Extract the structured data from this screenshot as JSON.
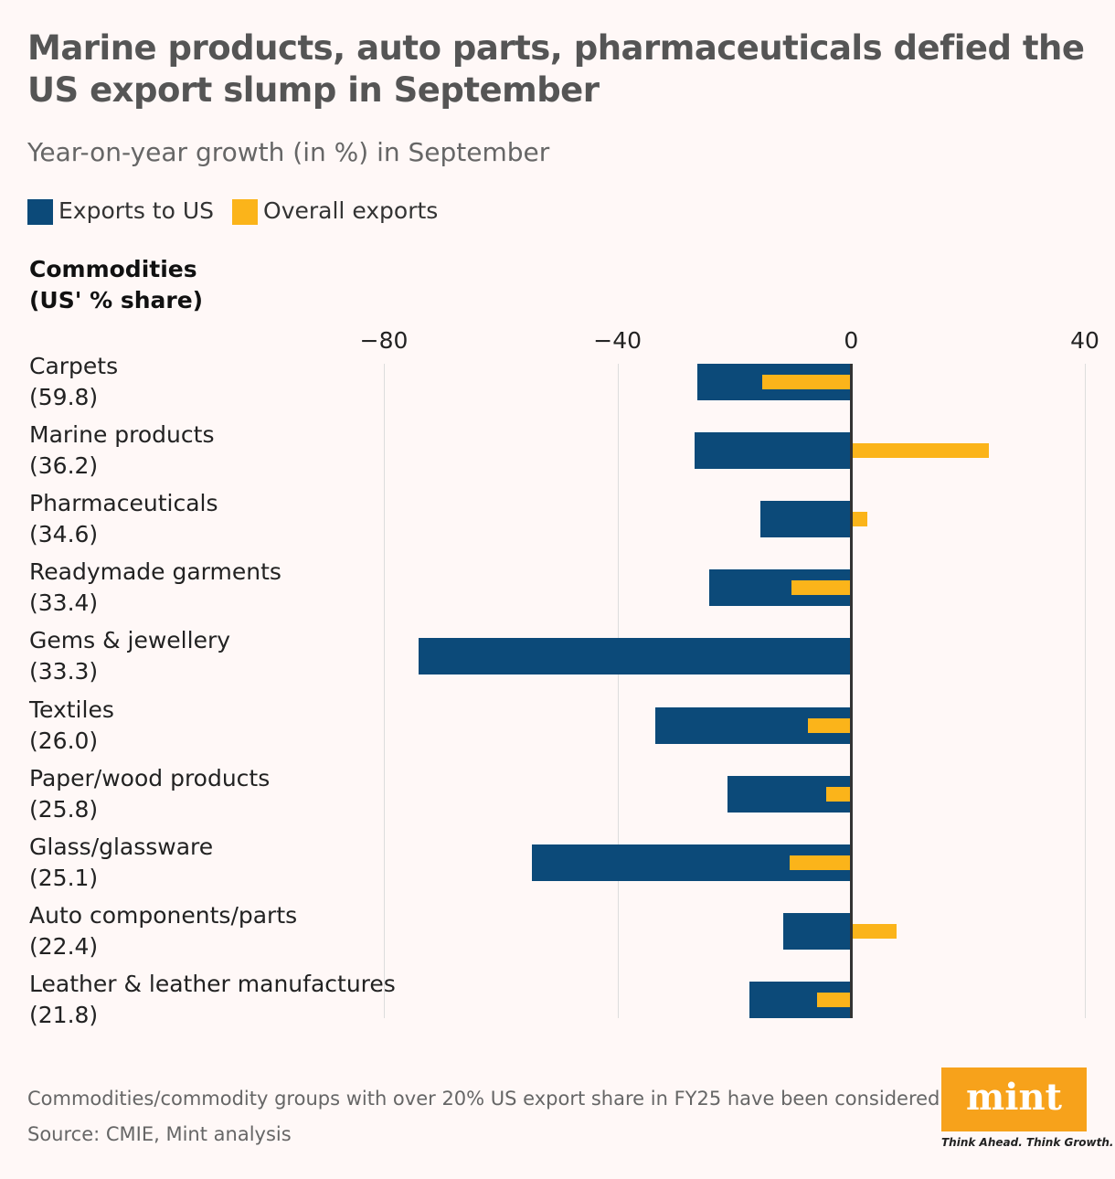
{
  "title": "Marine products, auto parts, pharmaceuticals defied the US export slump in September",
  "subtitle": "Year-on-year growth (in %) in September",
  "footnote": "Commodities/commodity groups with over 20% US export share in FY25 have been considered.",
  "source": "Source: CMIE, Mint analysis",
  "logo": {
    "text": "mint",
    "tagline": "Think Ahead. Think Growth.",
    "color": "#f7a21b"
  },
  "chart_data": {
    "type": "bar",
    "orientation": "horizontal",
    "category_header": "Commodities (US' % share)",
    "categories": [
      "Carpets",
      "Marine products",
      "Pharmaceuticals",
      "Readymade garments",
      "Gems & jewellery",
      "Textiles",
      "Paper/wood products",
      "Glass/glassware",
      "Auto components/parts",
      "Leather & leather manufactures"
    ],
    "shares": [
      "(59.8)",
      "(36.2)",
      "(34.6)",
      "(33.4)",
      "(33.3)",
      "(26.0)",
      "(25.8)",
      "(25.1)",
      "(22.4)",
      "(21.8)"
    ],
    "series": [
      {
        "name": "Exports to US",
        "color": "#0c4a79",
        "values": [
          -26.4,
          -26.8,
          -15.5,
          -24.3,
          -74.0,
          -33.6,
          -21.1,
          -54.6,
          -11.7,
          -17.4
        ]
      },
      {
        "name": "Overall exports",
        "color": "#fbb41a",
        "values": [
          -15.2,
          23.6,
          2.7,
          -10.2,
          0,
          -7.4,
          -4.2,
          -10.5,
          7.7,
          -5.8
        ]
      }
    ],
    "xlim": [
      -80,
      40
    ],
    "xticks": [
      "−80",
      "−40",
      "0",
      "40"
    ],
    "xtick_values": [
      -80,
      -40,
      0,
      40
    ],
    "grid": true,
    "legend": "top-left"
  }
}
